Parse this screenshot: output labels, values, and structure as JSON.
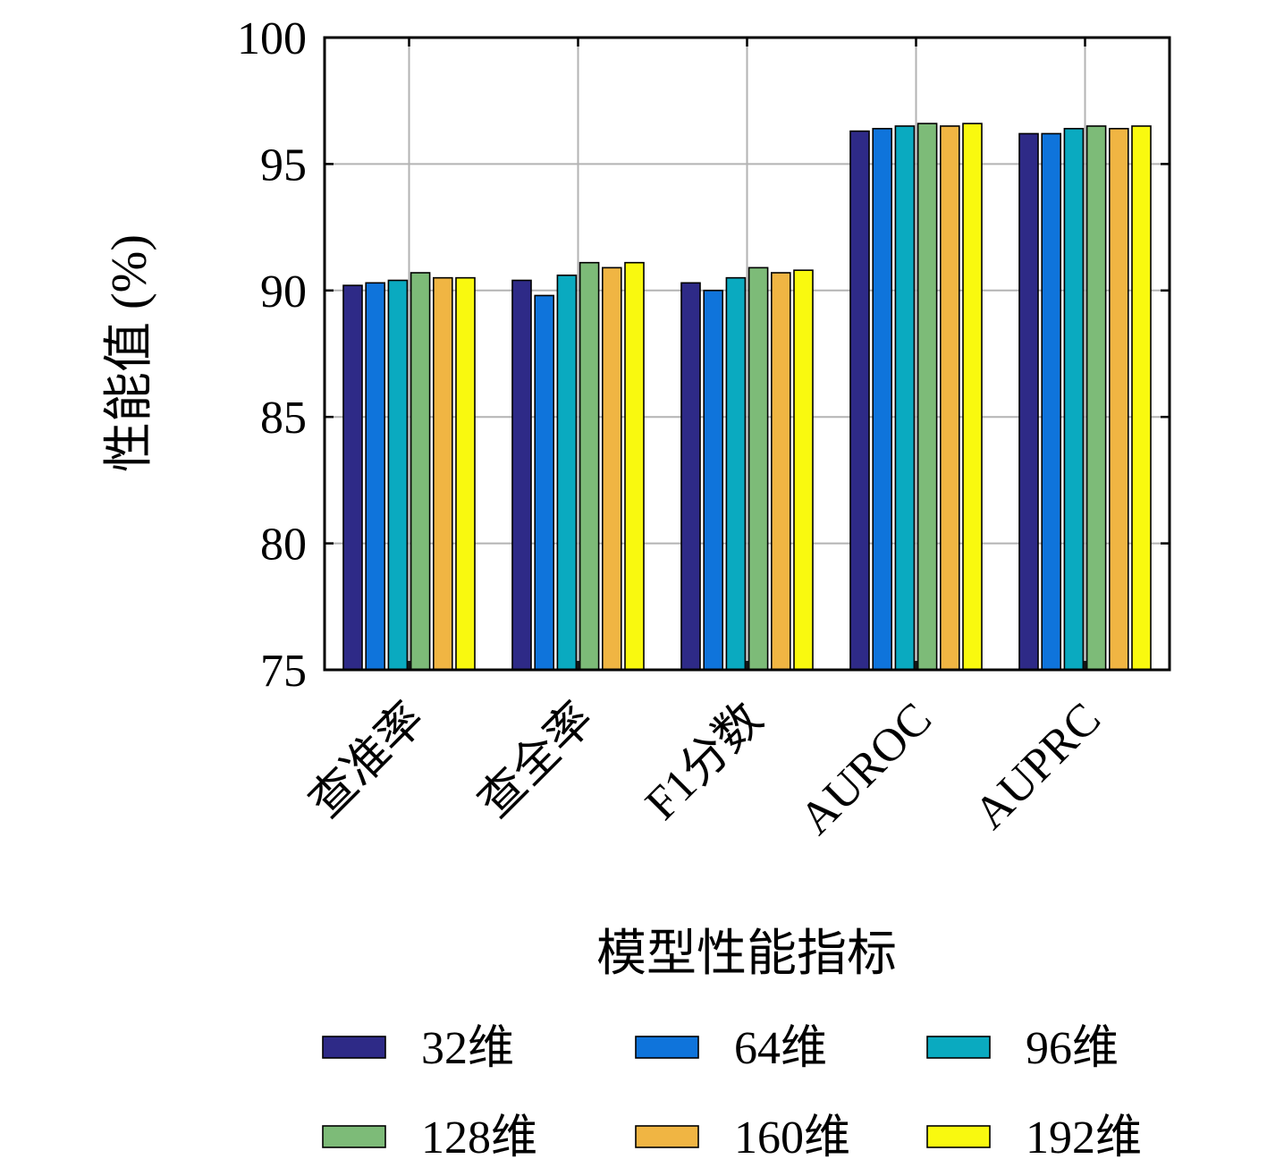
{
  "chart_data": {
    "type": "bar",
    "title": "",
    "xlabel": "模型性能指标",
    "ylabel": "性能值 (%)",
    "ylim": [
      75,
      100
    ],
    "yticks": [
      75,
      80,
      85,
      90,
      95,
      100
    ],
    "grid": true,
    "legend_position": "bottom",
    "categories": [
      "查准率",
      "查全率",
      "F1分数",
      "AUROC",
      "AUPRC"
    ],
    "series": [
      {
        "name": "32维",
        "color": "#2E2A87",
        "values": [
          90.2,
          90.4,
          90.3,
          96.3,
          96.2
        ]
      },
      {
        "name": "64维",
        "color": "#0F74DB",
        "values": [
          90.3,
          89.8,
          90.0,
          96.4,
          96.2
        ]
      },
      {
        "name": "96维",
        "color": "#0AAAC0",
        "values": [
          90.4,
          90.6,
          90.5,
          96.5,
          96.4
        ]
      },
      {
        "name": "128维",
        "color": "#7DBB78",
        "values": [
          90.7,
          91.1,
          90.9,
          96.6,
          96.5
        ]
      },
      {
        "name": "160维",
        "color": "#F0B543",
        "values": [
          90.5,
          90.9,
          90.7,
          96.5,
          96.4
        ]
      },
      {
        "name": "192维",
        "color": "#F9F90F",
        "values": [
          90.5,
          91.1,
          90.8,
          96.6,
          96.5
        ]
      }
    ]
  }
}
